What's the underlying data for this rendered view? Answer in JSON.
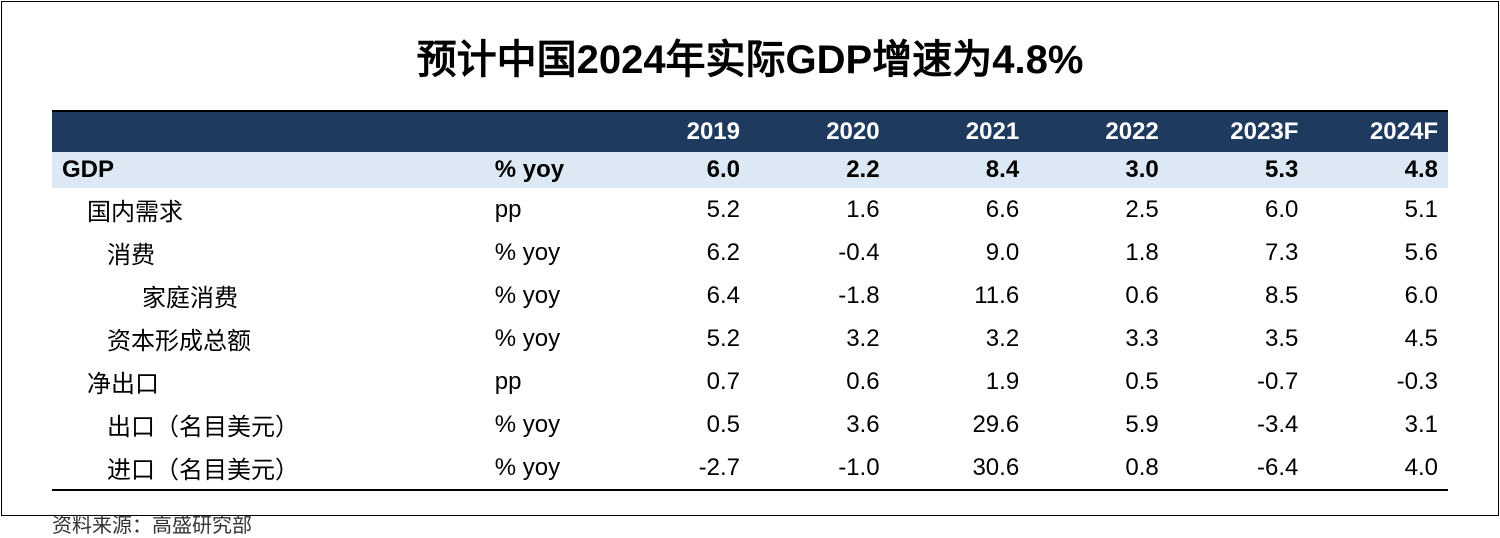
{
  "title": "预计中国2024年实际GDP增速为4.8%",
  "source": "资料来源：高盛研究部",
  "table": {
    "header_bg": "#1f3a5f",
    "header_fg": "#ffffff",
    "highlight_bg": "#dce9f5",
    "border_color": "#000000",
    "columns": [
      "",
      "",
      "2019",
      "2020",
      "2021",
      "2022",
      "2023F",
      "2024F"
    ],
    "rows": [
      {
        "label": "GDP",
        "unit": "% yoy",
        "values": [
          "6.0",
          "2.2",
          "8.4",
          "3.0",
          "5.3",
          "4.8"
        ],
        "highlight": true,
        "indent": 0
      },
      {
        "label": "国内需求",
        "unit": "pp",
        "values": [
          "5.2",
          "1.6",
          "6.6",
          "2.5",
          "6.0",
          "5.1"
        ],
        "highlight": false,
        "indent": 1
      },
      {
        "label": "消费",
        "unit": "% yoy",
        "values": [
          "6.2",
          "-0.4",
          "9.0",
          "1.8",
          "7.3",
          "5.6"
        ],
        "highlight": false,
        "indent": 2
      },
      {
        "label": "家庭消费",
        "unit": "% yoy",
        "values": [
          "6.4",
          "-1.8",
          "11.6",
          "0.6",
          "8.5",
          "6.0"
        ],
        "highlight": false,
        "indent": 3
      },
      {
        "label": "资本形成总额",
        "unit": "% yoy",
        "values": [
          "5.2",
          "3.2",
          "3.2",
          "3.3",
          "3.5",
          "4.5"
        ],
        "highlight": false,
        "indent": 2
      },
      {
        "label": "净出口",
        "unit": "pp",
        "values": [
          "0.7",
          "0.6",
          "1.9",
          "0.5",
          "-0.7",
          "-0.3"
        ],
        "highlight": false,
        "indent": 1
      },
      {
        "label": "出口（名目美元）",
        "unit": "% yoy",
        "values": [
          "0.5",
          "3.6",
          "29.6",
          "5.9",
          "-3.4",
          "3.1"
        ],
        "highlight": false,
        "indent": 2
      },
      {
        "label": "进口（名目美元）",
        "unit": "% yoy",
        "values": [
          "-2.7",
          "-1.0",
          "30.6",
          "0.8",
          "-6.4",
          "4.0"
        ],
        "highlight": false,
        "indent": 2
      }
    ]
  }
}
